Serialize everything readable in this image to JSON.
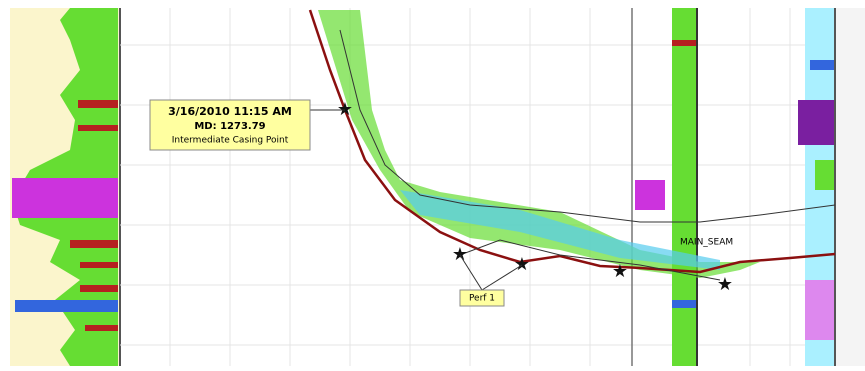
{
  "callout": {
    "date": "3/16/2010 11:15 AM",
    "md": "MD: 1273.79",
    "label": "Intermediate Casing Point"
  },
  "markers": {
    "perf": "Perf 1",
    "seam": "MAIN_SEAM"
  }
}
